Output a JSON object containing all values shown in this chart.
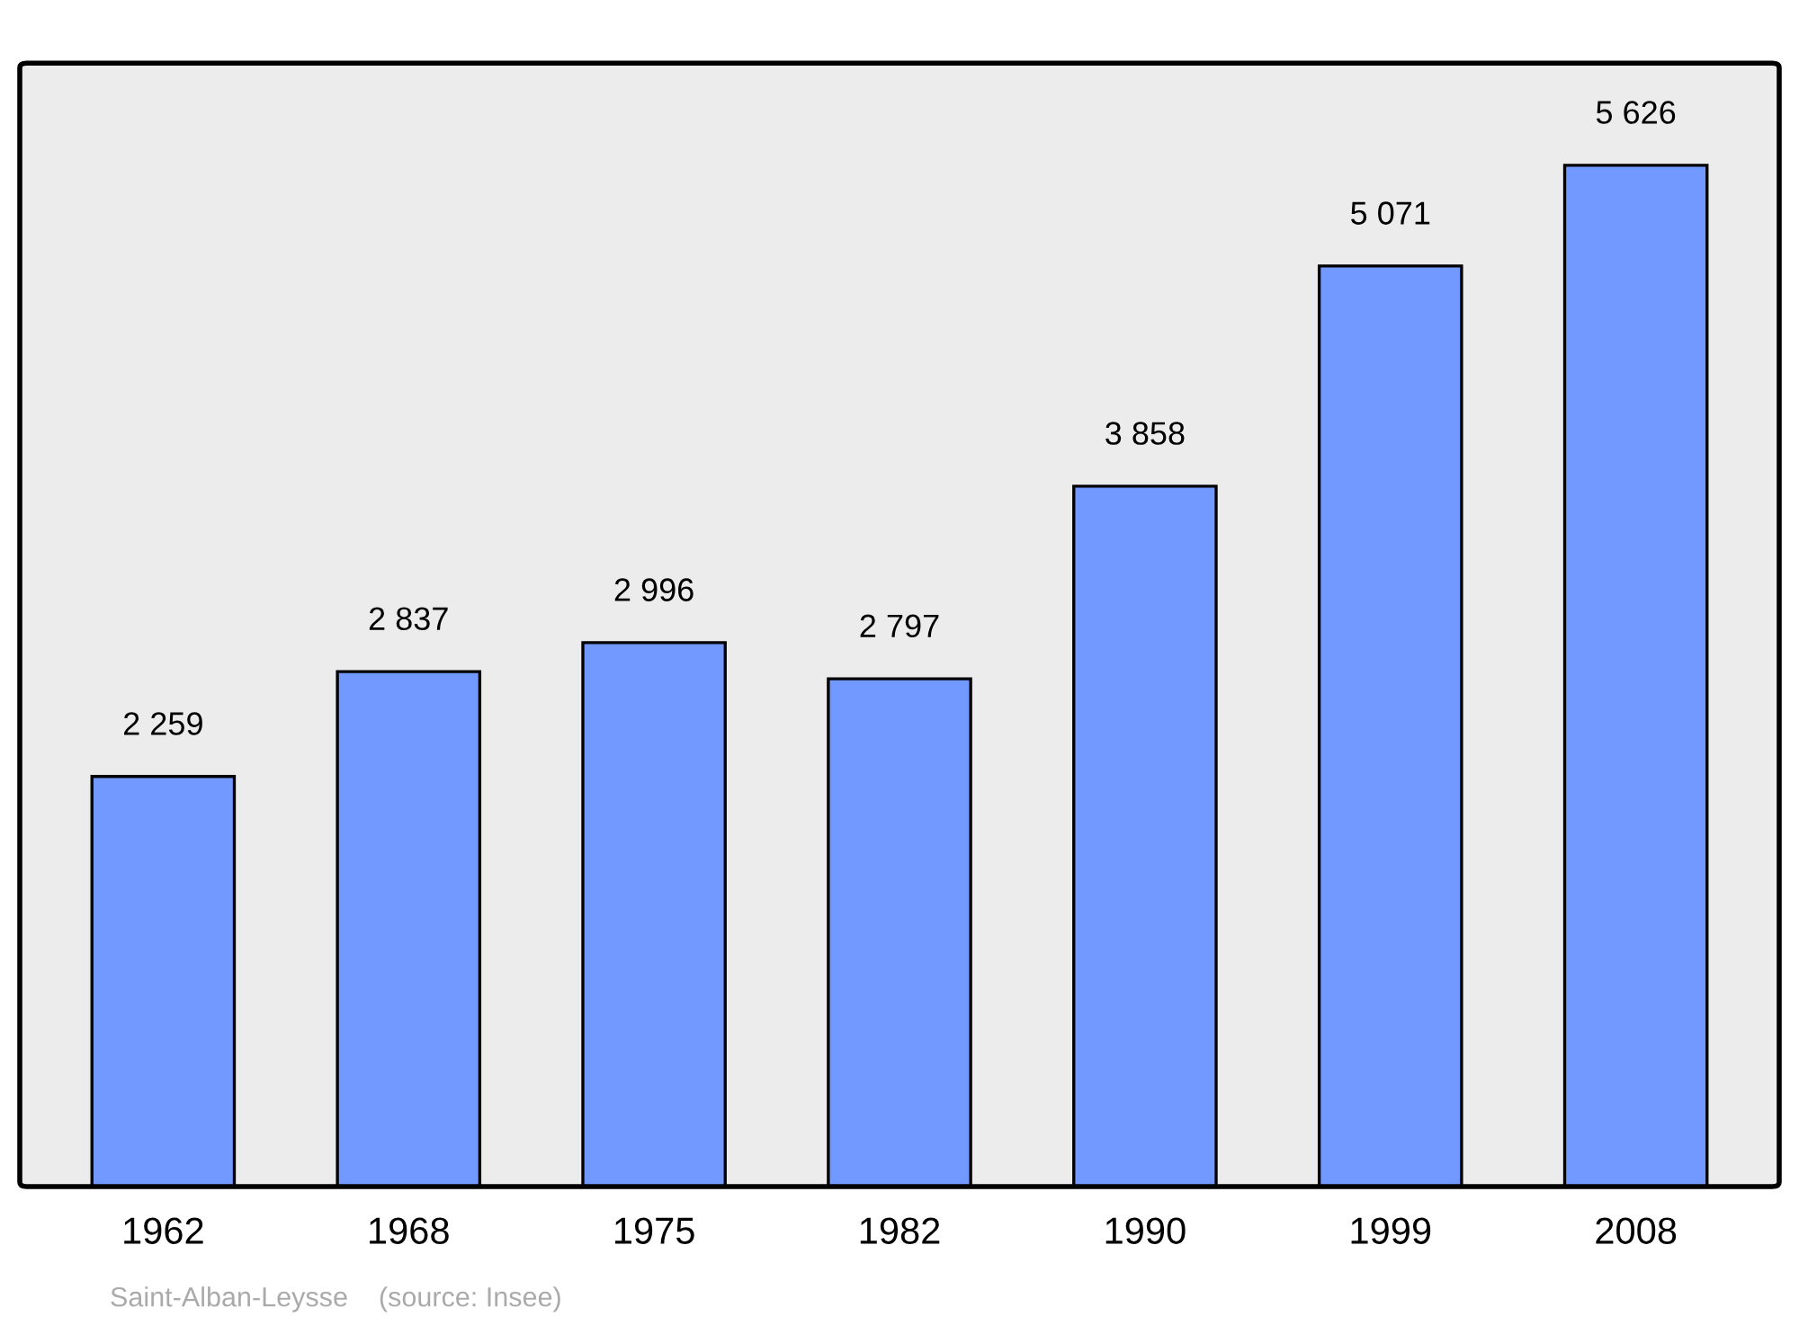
{
  "chart_data": {
    "type": "bar",
    "categories": [
      "1962",
      "1968",
      "1975",
      "1982",
      "1990",
      "1999",
      "2008"
    ],
    "values": [
      2259,
      2837,
      2996,
      2797,
      3858,
      5071,
      5626
    ],
    "value_labels": [
      "2 259",
      "2 837",
      "2 996",
      "2 797",
      "3 858",
      "5 071",
      "5 626"
    ],
    "color": "#7299ff",
    "tick_labels": "x",
    "grid": false,
    "legend": false,
    "annotations": [
      "Saint-Alban-Leysse    (source: Insee)"
    ]
  }
}
